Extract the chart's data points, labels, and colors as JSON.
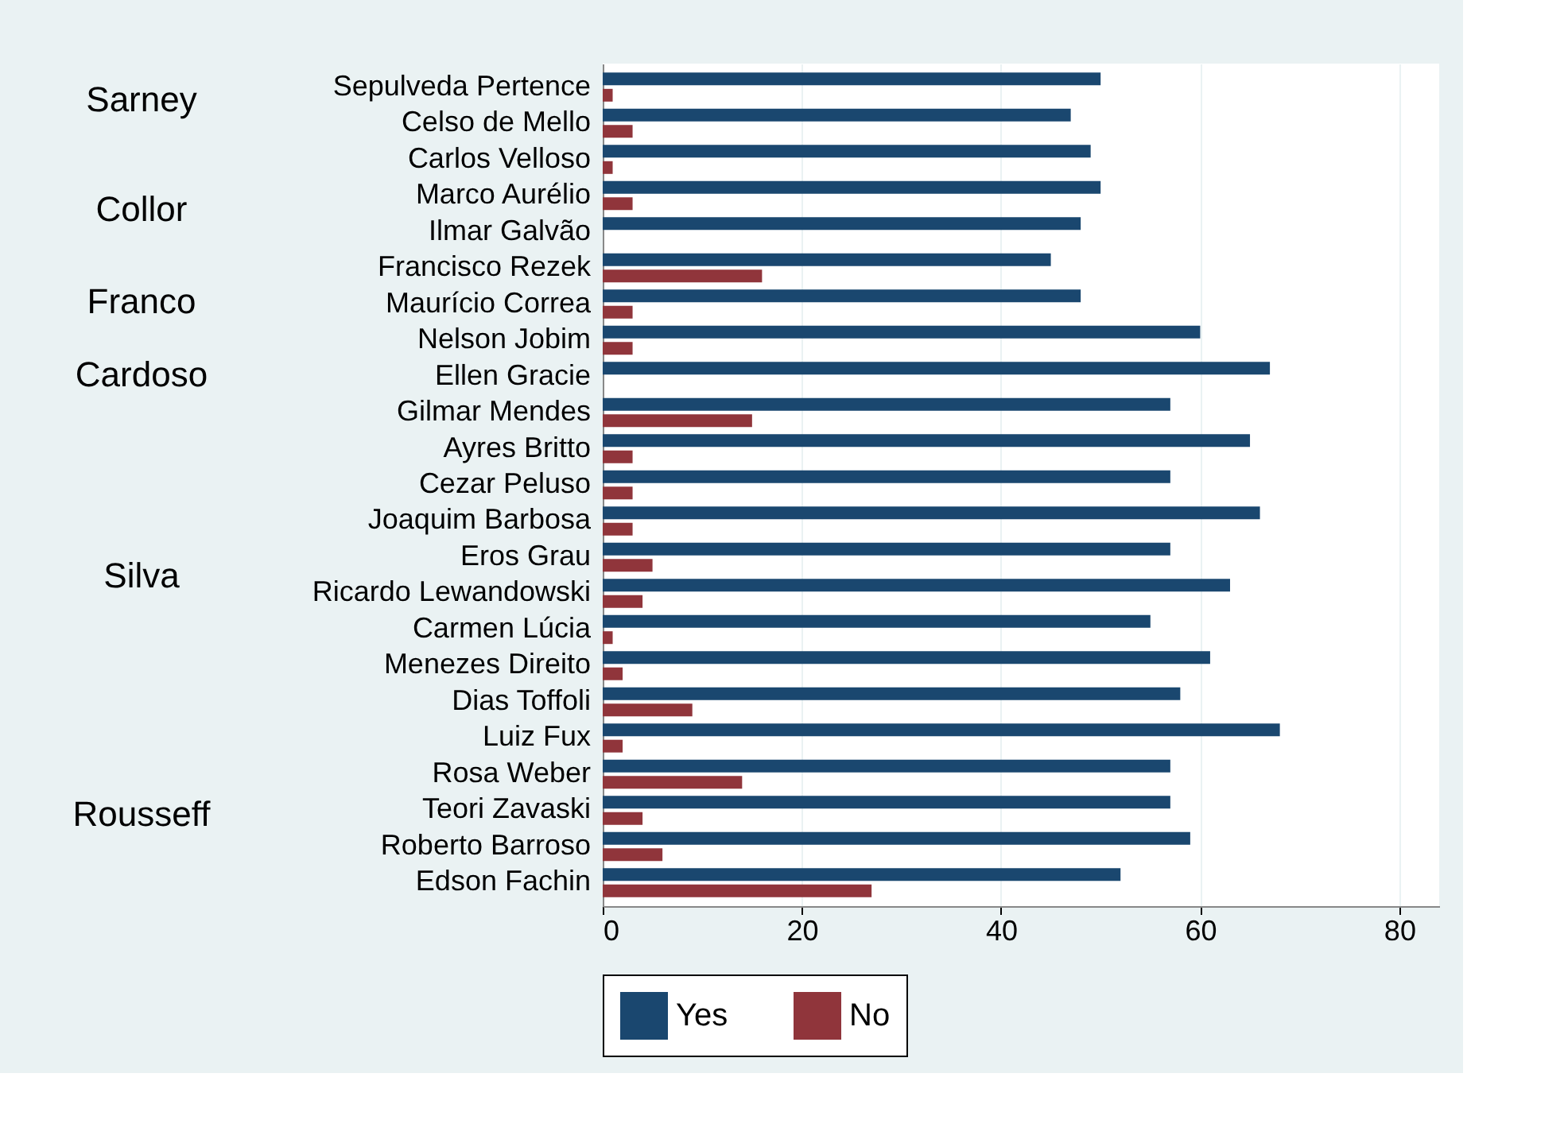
{
  "chart_data": {
    "type": "bar",
    "orientation": "horizontal",
    "categories": [
      "Sepulveda Pertence",
      "Celso de Mello",
      "Carlos Velloso",
      "Marco Aurélio",
      "Ilmar Galvão",
      "Francisco Rezek",
      "Maurício Correa",
      "Nelson Jobim",
      "Ellen Gracie",
      "Gilmar Mendes",
      "Ayres Britto",
      "Cezar Peluso",
      "Joaquim Barbosa",
      "Eros Grau",
      "Ricardo Lewandowski",
      "Carmen Lúcia",
      "Menezes Direito",
      "Dias Toffoli",
      "Luiz Fux",
      "Rosa Weber",
      "Teori Zavaski",
      "Roberto Barroso",
      "Edson Fachin"
    ],
    "series": [
      {
        "name": "Yes",
        "color": "#1a476f",
        "values": [
          50,
          47,
          49,
          50,
          48,
          45,
          48,
          60,
          67,
          57,
          65,
          57,
          66,
          57,
          63,
          55,
          61,
          58,
          68,
          57,
          57,
          59,
          52
        ]
      },
      {
        "name": "No",
        "color": "#90353b",
        "values": [
          1,
          3,
          1,
          3,
          0,
          16,
          3,
          3,
          0,
          15,
          3,
          3,
          3,
          5,
          4,
          1,
          2,
          9,
          2,
          14,
          4,
          6,
          27
        ]
      }
    ],
    "xlim": [
      0,
      84
    ],
    "xticks": [
      0,
      20,
      40,
      60,
      80
    ],
    "grid": "x",
    "legend": "bottom",
    "annotations": [
      "Sarney",
      "Collor",
      "Franco",
      "Cardoso",
      "Silva",
      "Rousseff"
    ]
  }
}
